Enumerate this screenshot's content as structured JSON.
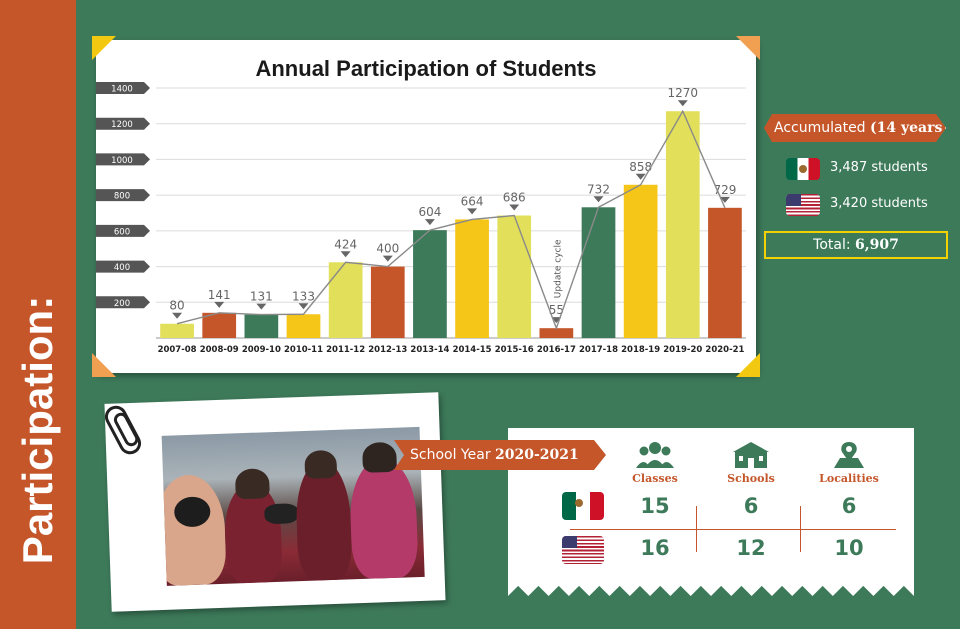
{
  "side_title": "Participation:",
  "chart_data": {
    "type": "bar",
    "title": "Annual Participation of Students",
    "categories": [
      "2007-08",
      "2008-09",
      "2009-10",
      "2010-11",
      "2011-12",
      "2012-13",
      "2013-14",
      "2014-15",
      "2015-16",
      "2016-17",
      "2017-18",
      "2018-19",
      "2019-20",
      "2020-21"
    ],
    "values": [
      80,
      141,
      131,
      133,
      424,
      400,
      604,
      664,
      686,
      55,
      732,
      858,
      1270,
      729
    ],
    "bar_colors": [
      "#e2e05a",
      "#c4562a",
      "#3d7a5a",
      "#f5c518",
      "#e2e05a",
      "#c4562a",
      "#3d7a5a",
      "#f5c518",
      "#e2e05a",
      "#c4562a",
      "#3d7a5a",
      "#f5c518",
      "#e2e05a",
      "#c4562a"
    ],
    "ylim": [
      0,
      1400
    ],
    "yticks": [
      200,
      400,
      600,
      800,
      1000,
      1200,
      1400
    ],
    "annotations": [
      {
        "category": "2016-17",
        "text": "Update cycle"
      }
    ],
    "trend_line": true,
    "grid": true,
    "xlabel": "",
    "ylabel": ""
  },
  "accumulated": {
    "label": "Accumulated",
    "period": "(14 years)",
    "mexico": "3,487 students",
    "usa": "3,420 students",
    "total_label": "Total:",
    "total_value": "6,907"
  },
  "school_year": {
    "label": "School Year",
    "year": "2020-2021",
    "columns": [
      {
        "label": "Classes",
        "icon": "people-icon"
      },
      {
        "label": "Schools",
        "icon": "school-icon"
      },
      {
        "label": "Localities",
        "icon": "map-pin-icon"
      }
    ],
    "rows": [
      {
        "flag": "mexico-flag-icon",
        "values": [
          "15",
          "6",
          "6"
        ]
      },
      {
        "flag": "usa-flag-icon",
        "values": [
          "16",
          "12",
          "10"
        ]
      }
    ]
  },
  "colors": {
    "green": "#3d7a5a",
    "orange": "#c4562a",
    "yellow": "#f5c518",
    "lime": "#e2e05a"
  }
}
